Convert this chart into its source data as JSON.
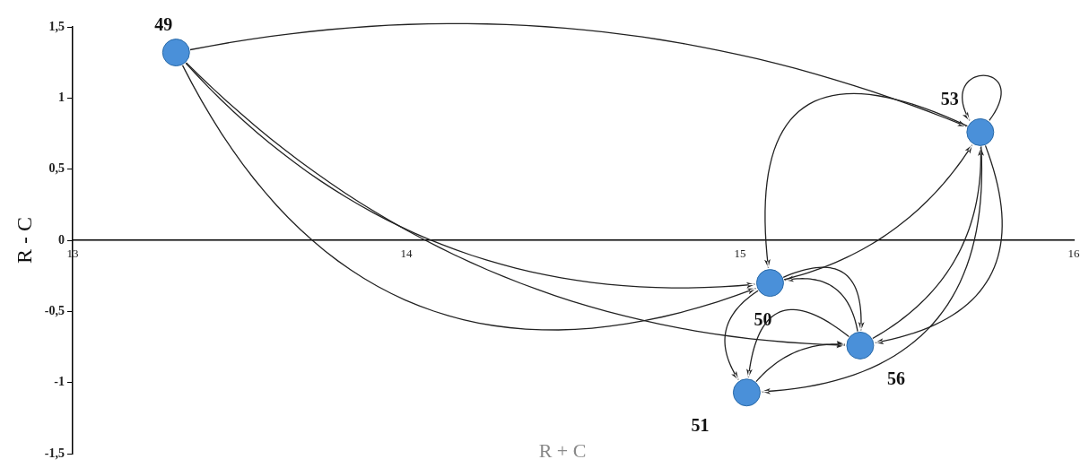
{
  "chart_data": {
    "type": "scatter",
    "xlabel": "R + C",
    "ylabel": "R - C",
    "x": [
      13.31,
      15.72,
      15.09,
      15.36,
      15.02
    ],
    "values": [
      1.32,
      0.76,
      -0.3,
      -0.74,
      -1.07
    ],
    "color": "#4a90d9",
    "marker": "circle",
    "grid": false,
    "legend": false,
    "xlim": [
      13,
      16
    ],
    "xticks": [
      13,
      14,
      15,
      16
    ],
    "ylim": [
      -1.5,
      1.5
    ],
    "yticks": [
      {
        "value": -1.5,
        "label": "-1,5"
      },
      {
        "value": -1,
        "label": "-1"
      },
      {
        "value": -0.5,
        "label": "-0,5"
      },
      {
        "value": 0,
        "label": "0"
      },
      {
        "value": 0.5,
        "label": "0,5"
      },
      {
        "value": 1,
        "label": "1"
      },
      {
        "value": 1.5,
        "label": "1,5"
      }
    ],
    "annotations": [
      {
        "text": "49",
        "x": 13.31,
        "y": 1.32
      },
      {
        "text": "53",
        "x": 15.72,
        "y": 0.76
      },
      {
        "text": "50",
        "x": 15.09,
        "y": -0.3
      },
      {
        "text": "56",
        "x": 15.36,
        "y": -0.74
      },
      {
        "text": "51",
        "x": 15.02,
        "y": -1.07
      }
    ]
  }
}
